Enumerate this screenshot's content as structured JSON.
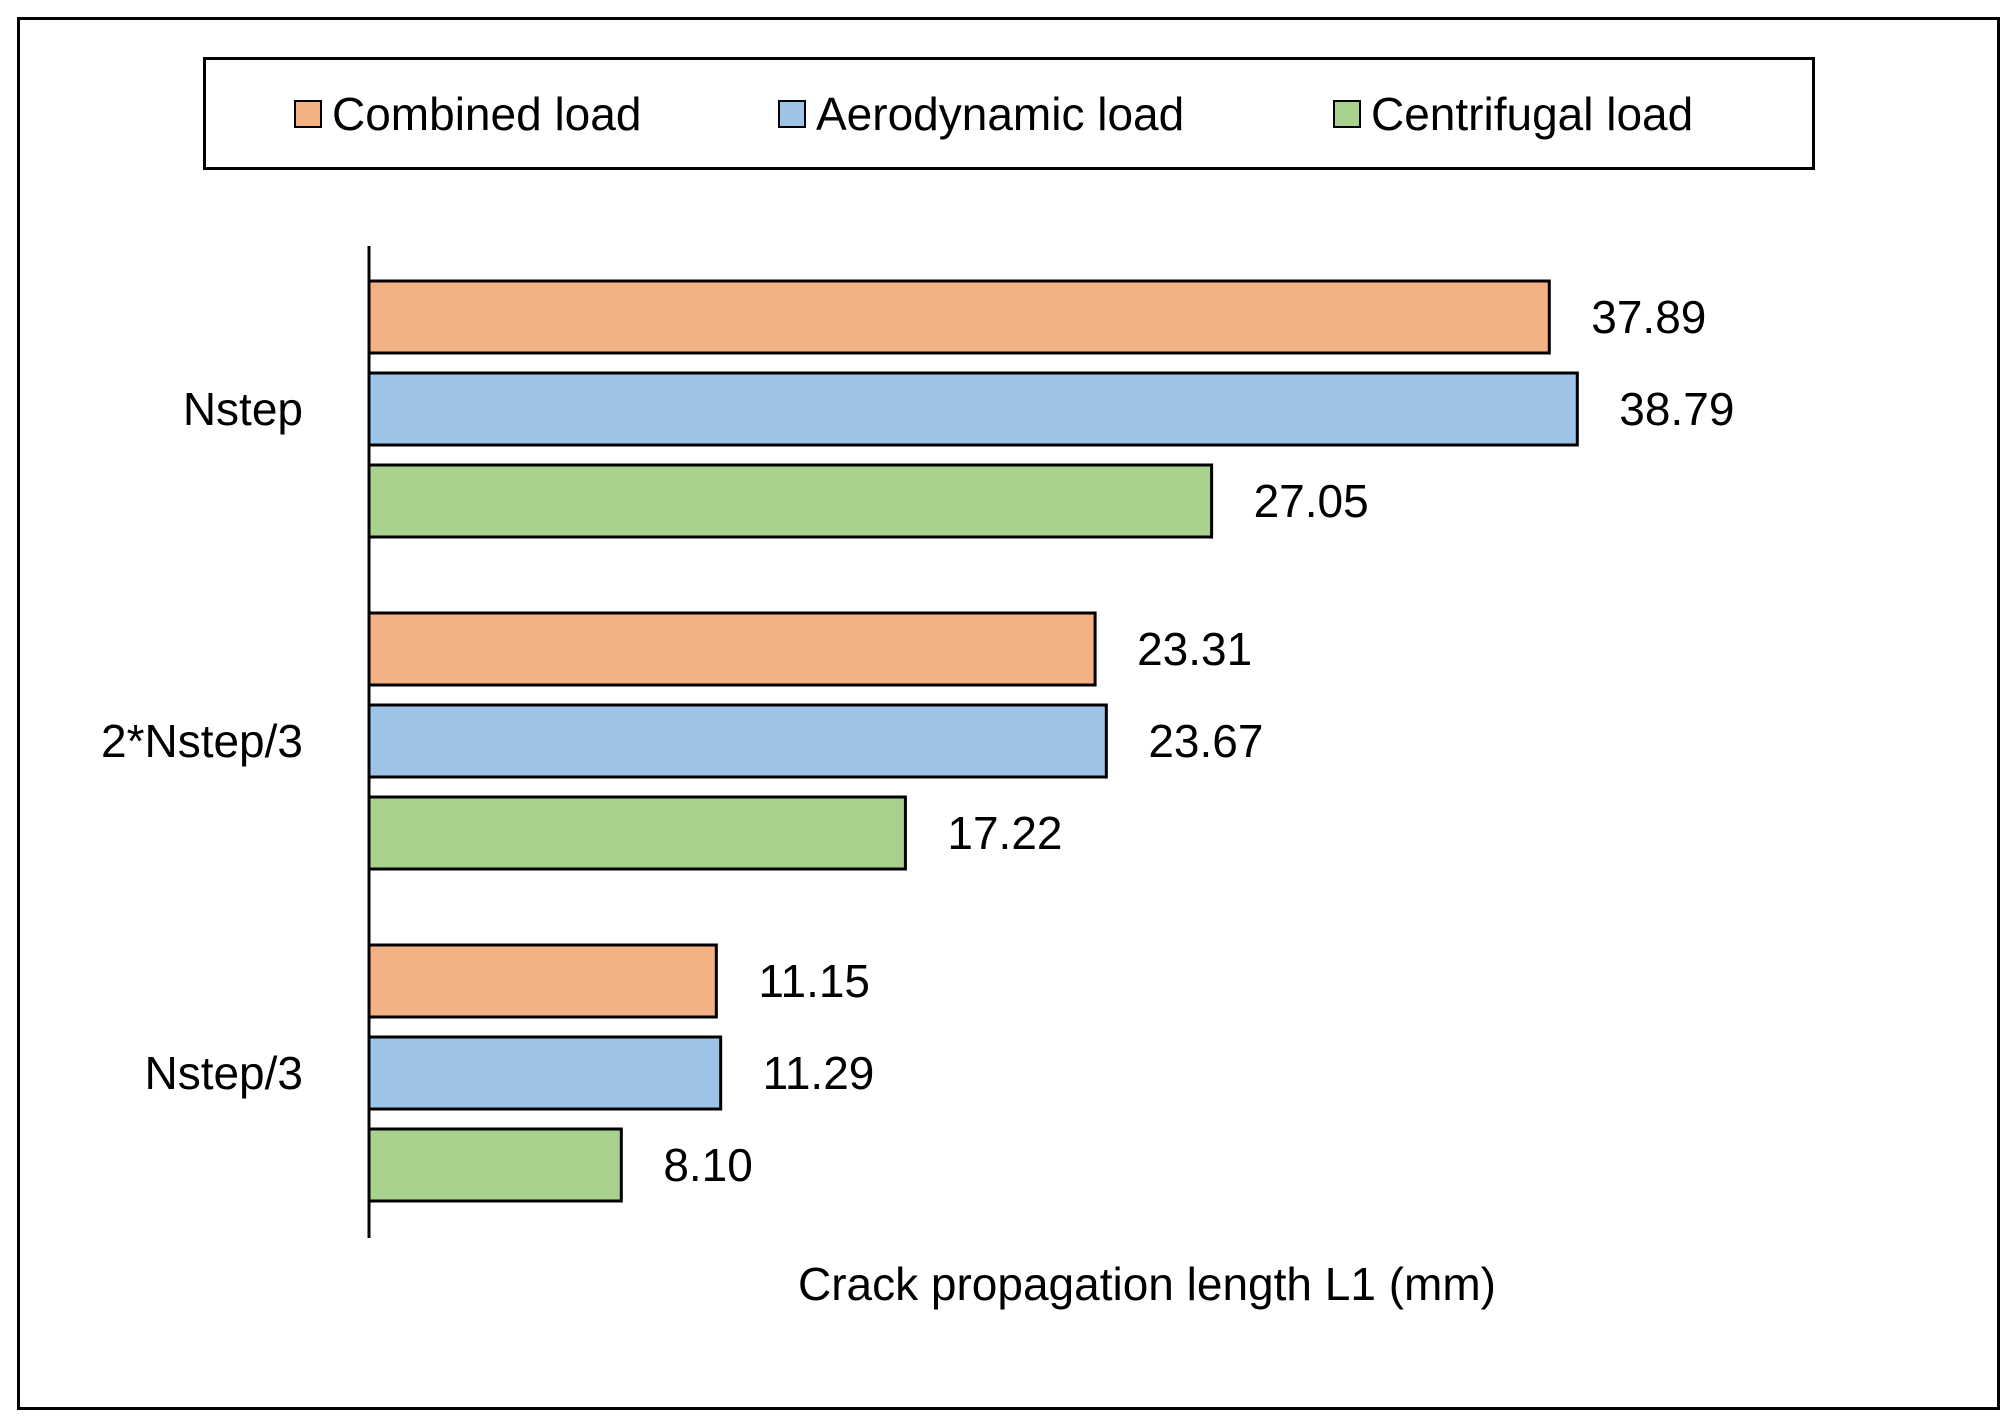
{
  "chart_data": {
    "type": "bar",
    "orientation": "horizontal",
    "title": "",
    "xlabel": "Crack propagation length L1 (mm)",
    "ylabel": "",
    "xlim": [
      0,
      40
    ],
    "grid": false,
    "legend_position": "top",
    "categories": [
      "Nstep",
      "2*Nstep/3",
      "Nstep/3"
    ],
    "series": [
      {
        "name": "Combined load",
        "color": "#F4B183",
        "values": [
          37.89,
          23.31,
          11.15
        ],
        "labels": [
          "37.89",
          "23.31",
          "11.15"
        ]
      },
      {
        "name": "Aerodynamic load",
        "color": "#9DC3E6",
        "values": [
          38.79,
          23.67,
          11.29
        ],
        "labels": [
          "38.79",
          "23.67",
          "11.29"
        ]
      },
      {
        "name": "Centrifugal load",
        "color": "#A9D18E",
        "values": [
          27.05,
          17.22,
          8.1
        ],
        "labels": [
          "27.05",
          "17.22",
          "8.10"
        ]
      }
    ]
  }
}
